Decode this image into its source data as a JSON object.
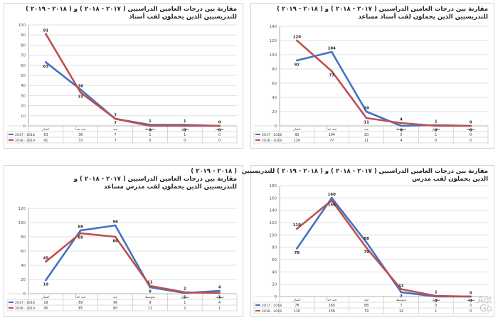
{
  "legend": [
    "2017 - 2018",
    "2018 - 2019"
  ],
  "colors": {
    "series_2017_2018": "#4472c4",
    "series_2018_2019": "#c0504d"
  },
  "watermark": [
    "Act",
    "Go"
  ],
  "chart_data": [
    {
      "type": "line",
      "title_lines": [
        "مقارنة بين درجات العامين الدراسيين ( ٢٠١٧ - ٢٠١٨ ) و ( ٢٠١٨ - ٢٠١٩ )",
        "للتدريسيين الذين يحملون لقب أستاذ"
      ],
      "categories": [
        "امتياز",
        "جيد جداً",
        "جيد",
        "متوسط",
        "مقبول",
        "ضعيف"
      ],
      "ylim": [
        0,
        100
      ],
      "ytick_step": 10,
      "series": [
        {
          "name": "2017 - 2018",
          "values": [
            63,
            36,
            7,
            1,
            1,
            0
          ],
          "labels": [
            "63",
            "36",
            "7",
            "1",
            "1",
            "0"
          ]
        },
        {
          "name": "2018 - 2019",
          "values": [
            91,
            33,
            7,
            0,
            0,
            0
          ],
          "labels": [
            "91",
            "33",
            "7",
            "0",
            "0",
            "0"
          ]
        }
      ]
    },
    {
      "type": "line",
      "title_lines": [
        "مقارنة بين درجات العامين الدراسيين ( ٢٠١٧ - ٢٠١٨ ) و ( ٢٠١٨ - ٢٠١٩ )",
        "للتدريسيين الذين يحملون لقب أستاذ مساعد"
      ],
      "categories": [
        "امتياز",
        "جيد جداً",
        "جيد",
        "متوسط",
        "مقبول",
        "ضعيف"
      ],
      "ylim": [
        0,
        140
      ],
      "ytick_step": 20,
      "series": [
        {
          "name": "2017 - 2018",
          "values": [
            92,
            104,
            20,
            0,
            1,
            0
          ],
          "labels": [
            "92",
            "104",
            "20",
            "0",
            "1",
            "0"
          ]
        },
        {
          "name": "2018 - 2019",
          "values": [
            120,
            77,
            11,
            4,
            0,
            0
          ],
          "labels": [
            "120",
            "77",
            "11",
            "4",
            "0",
            "0"
          ]
        }
      ]
    },
    {
      "type": "line",
      "title_lines": [
        "( ٢٠١٨ - ٢٠١٩ )",
        "مقارنة بين درجات العامين الدراسيين ( ٢٠١٧ - ٢٠١٨ ) و",
        "للتدريسيين الذين يحملون لقب مدرس مساعد"
      ],
      "categories": [
        "امتياز",
        "جيد جداً",
        "جيد",
        "متوسط",
        "مقبول",
        "ضعيف"
      ],
      "ylim": [
        0,
        120
      ],
      "ytick_step": 20,
      "series": [
        {
          "name": "2017 - 2018",
          "values": [
            19,
            89,
            96,
            9,
            1,
            4
          ],
          "labels": [
            "19",
            "89",
            "96",
            "9",
            "1",
            "4"
          ]
        },
        {
          "name": "2018 - 2019",
          "values": [
            45,
            85,
            80,
            11,
            2,
            1
          ],
          "labels": [
            "45",
            "85",
            "80",
            "11",
            "2",
            "1"
          ]
        }
      ]
    },
    {
      "type": "line",
      "title_lines": [
        "مقارنة بين درجات العامين الدراسيين ( ٢٠١٧ - ٢٠١٨ ) و ( ٢٠١٨ - ٢٠١٩ ) للتدريسيين",
        "الذين يحملون لقب مدرس"
      ],
      "categories": [
        "امتياز",
        "جيد جداً",
        "جيد",
        "متوسط",
        "مقبول",
        "ضعيف"
      ],
      "ylim": [
        0,
        180
      ],
      "ytick_step": 20,
      "series": [
        {
          "name": "2017 - 2018",
          "values": [
            78,
            160,
            88,
            7,
            0,
            0
          ],
          "labels": [
            "78",
            "160",
            "88",
            "7",
            "0",
            "0"
          ]
        },
        {
          "name": "2018 - 2019",
          "values": [
            110,
            156,
            79,
            12,
            1,
            0
          ],
          "labels": [
            "110",
            "156",
            "79",
            "12",
            "1",
            "0"
          ]
        }
      ]
    }
  ]
}
